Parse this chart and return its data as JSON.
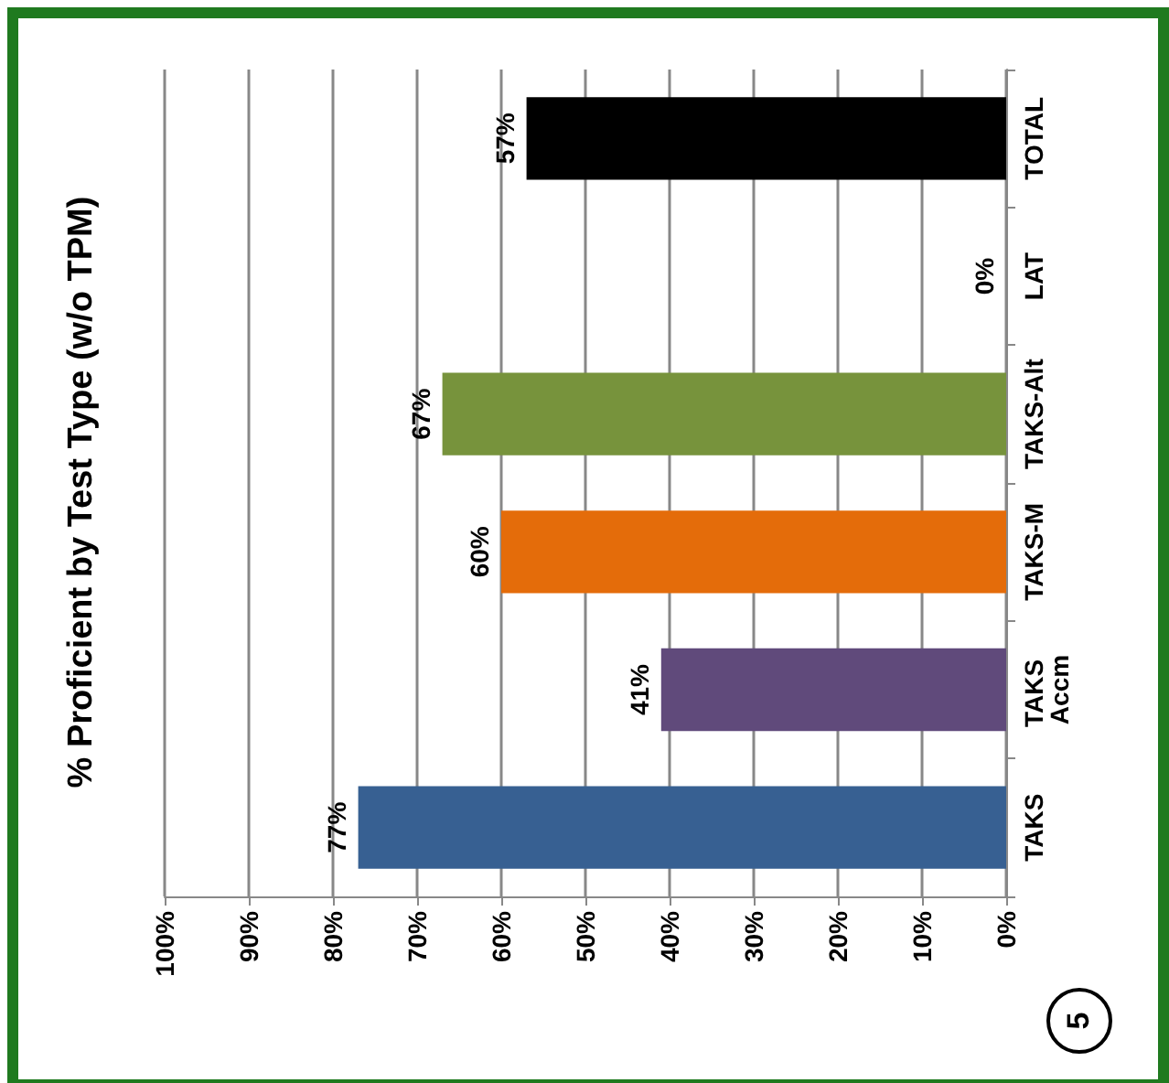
{
  "chart_data": {
    "type": "bar",
    "orientation": "horizontal",
    "title": "% Proficient by Test Type (w/o TPM)",
    "categories": [
      "TOTAL",
      "LAT",
      "TAKS-Alt",
      "TAKS-M",
      "TAKS Accm",
      "TAKS"
    ],
    "values": [
      57,
      0,
      67,
      60,
      41,
      77
    ],
    "colors": [
      "#000000",
      "#4f81bd",
      "#77933c",
      "#e46c0a",
      "#604a7b",
      "#376092"
    ],
    "value_labels": [
      "57%",
      "0%",
      "67%",
      "60%",
      "41%",
      "77%"
    ],
    "xlim": [
      100,
      0
    ],
    "xticks": [
      {
        "value": 0,
        "label": "0%"
      },
      {
        "value": 10,
        "label": "10%"
      },
      {
        "value": 20,
        "label": "20%"
      },
      {
        "value": 30,
        "label": "30%"
      },
      {
        "value": 40,
        "label": "40%"
      },
      {
        "value": 50,
        "label": "50%"
      },
      {
        "value": 60,
        "label": "60%"
      },
      {
        "value": 70,
        "label": "70%"
      },
      {
        "value": 80,
        "label": "80%"
      },
      {
        "value": 90,
        "label": "90%"
      },
      {
        "value": 100,
        "label": "100%"
      }
    ],
    "grid": "x",
    "annotations": [
      "5"
    ]
  }
}
